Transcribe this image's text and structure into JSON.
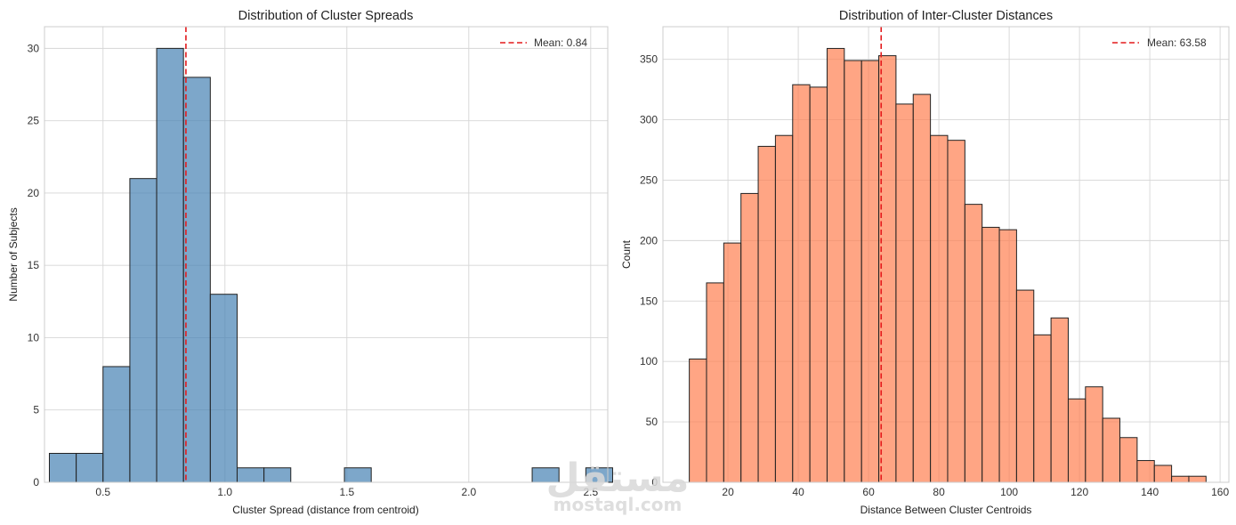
{
  "watermark": {
    "logo_text": "مستقل",
    "site_text": "mostaql.com"
  },
  "chart_data": [
    {
      "type": "bar",
      "title": "Distribution of Cluster Spreads",
      "xlabel": "Cluster Spread (distance from centroid)",
      "ylabel": "Number of Subjects",
      "xlim": [
        0.26,
        2.57
      ],
      "ylim": [
        0,
        31.5
      ],
      "xticks": [
        0.5,
        1.0,
        1.5,
        2.0,
        2.5
      ],
      "xtick_labels": [
        "0.5",
        "1.0",
        "1.5",
        "2.0",
        "2.5"
      ],
      "yticks": [
        0,
        5,
        10,
        15,
        20,
        25,
        30
      ],
      "ytick_labels": [
        "0",
        "5",
        "10",
        "15",
        "20",
        "25",
        "30"
      ],
      "bin_start": 0.28,
      "bin_width": 0.11,
      "counts": [
        2,
        2,
        8,
        21,
        30,
        28,
        13,
        1,
        1,
        0,
        0,
        1,
        0,
        0,
        0,
        0,
        0,
        0,
        1,
        0,
        1
      ],
      "bar_color": "#4682b4",
      "bar_alpha": 0.7,
      "mean": 0.84,
      "mean_label": "Mean: 0.84",
      "mean_color": "#e31a1c",
      "legend_loc": "upper right",
      "grid": true
    },
    {
      "type": "bar",
      "title": "Distribution of Inter-Cluster Distances",
      "xlabel": "Distance Between Cluster Centroids",
      "ylabel": "Count",
      "xlim": [
        1.5,
        162.5
      ],
      "ylim": [
        0,
        377
      ],
      "xticks": [
        20,
        40,
        60,
        80,
        100,
        120,
        140,
        160
      ],
      "xtick_labels": [
        "20",
        "40",
        "60",
        "80",
        "100",
        "120",
        "140",
        "160"
      ],
      "yticks": [
        0,
        50,
        100,
        150,
        200,
        250,
        300,
        350
      ],
      "ytick_labels": [
        "0",
        "50",
        "100",
        "150",
        "200",
        "250",
        "300",
        "350"
      ],
      "bin_start": 9.0,
      "bin_width": 4.9,
      "counts": [
        102,
        165,
        198,
        239,
        278,
        287,
        329,
        327,
        359,
        349,
        349,
        353,
        313,
        321,
        287,
        283,
        230,
        211,
        209,
        159,
        122,
        136,
        69,
        79,
        53,
        37,
        18,
        14,
        5,
        5
      ],
      "bar_color": "#ff7f50",
      "bar_alpha": 0.7,
      "mean": 63.58,
      "mean_label": "Mean: 63.58",
      "mean_color": "#e31a1c",
      "legend_loc": "upper right",
      "grid": true
    }
  ]
}
